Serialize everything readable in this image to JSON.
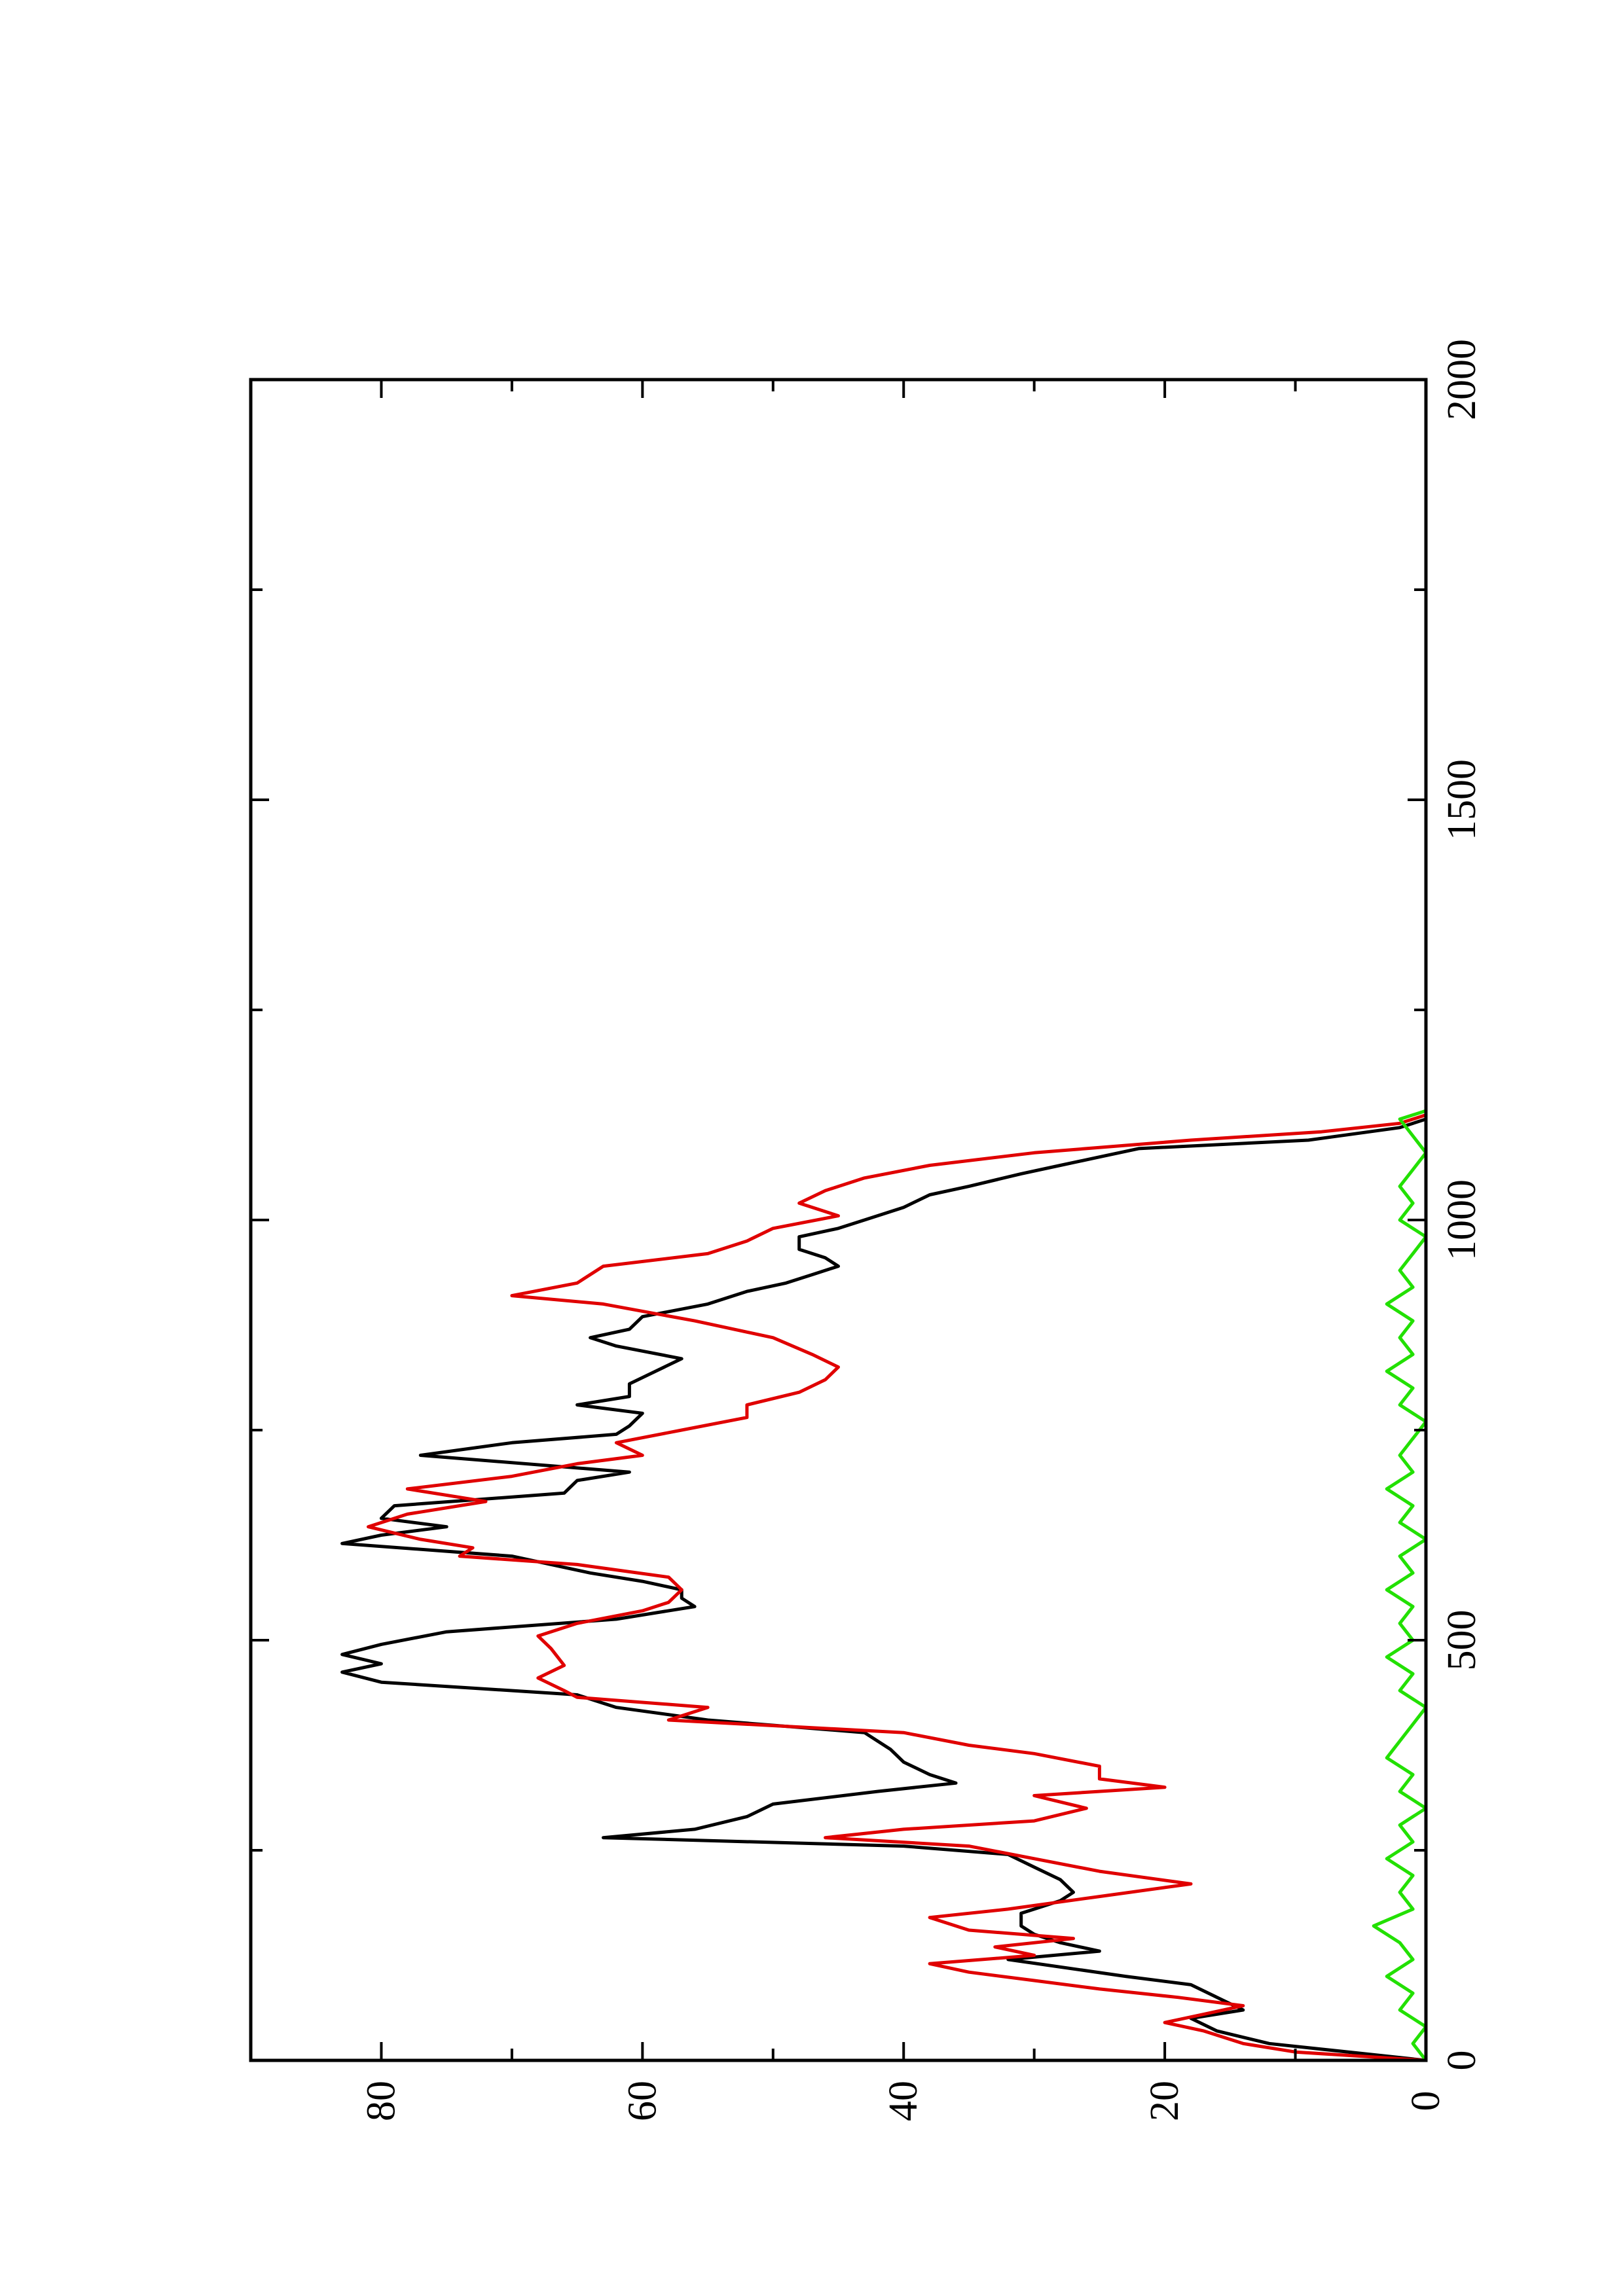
{
  "chart_data": {
    "type": "line",
    "orientation": "rotated-90-clockwise",
    "title": "",
    "xlabel": "",
    "ylabel": "",
    "xlim": [
      0,
      2000
    ],
    "ylim": [
      0,
      90
    ],
    "x_ticks": [
      "0",
      "500",
      "1000",
      "1500",
      "2000"
    ],
    "y_ticks": [
      "0",
      "20",
      "40",
      "60",
      "80"
    ],
    "grid": false,
    "legend": "none",
    "series": [
      {
        "color": "#000000",
        "points": [
          [
            0,
            0
          ],
          [
            20,
            12
          ],
          [
            35,
            16
          ],
          [
            50,
            18
          ],
          [
            60,
            14
          ],
          [
            75,
            16
          ],
          [
            90,
            18
          ],
          [
            100,
            23
          ],
          [
            120,
            32
          ],
          [
            130,
            25
          ],
          [
            140,
            28
          ],
          [
            150,
            30
          ],
          [
            160,
            31
          ],
          [
            175,
            31
          ],
          [
            190,
            28
          ],
          [
            200,
            27
          ],
          [
            215,
            28
          ],
          [
            230,
            30
          ],
          [
            245,
            32
          ],
          [
            255,
            40
          ],
          [
            265,
            63
          ],
          [
            275,
            56
          ],
          [
            290,
            52
          ],
          [
            305,
            50
          ],
          [
            320,
            42
          ],
          [
            330,
            36
          ],
          [
            340,
            38
          ],
          [
            355,
            40
          ],
          [
            370,
            41
          ],
          [
            390,
            43
          ],
          [
            405,
            55
          ],
          [
            420,
            62
          ],
          [
            435,
            65
          ],
          [
            450,
            80
          ],
          [
            462,
            83
          ],
          [
            472,
            80
          ],
          [
            483,
            83
          ],
          [
            495,
            80
          ],
          [
            510,
            75
          ],
          [
            525,
            62
          ],
          [
            540,
            56
          ],
          [
            550,
            57
          ],
          [
            560,
            57
          ],
          [
            570,
            60
          ],
          [
            580,
            64
          ],
          [
            600,
            70
          ],
          [
            615,
            83
          ],
          [
            625,
            80
          ],
          [
            635,
            75
          ],
          [
            645,
            80
          ],
          [
            660,
            79
          ],
          [
            675,
            66
          ],
          [
            690,
            65
          ],
          [
            700,
            61
          ],
          [
            720,
            77
          ],
          [
            735,
            70
          ],
          [
            745,
            62
          ],
          [
            755,
            61
          ],
          [
            770,
            60
          ],
          [
            780,
            65
          ],
          [
            790,
            61
          ],
          [
            805,
            61
          ],
          [
            820,
            59
          ],
          [
            835,
            57
          ],
          [
            850,
            62
          ],
          [
            860,
            64
          ],
          [
            870,
            61
          ],
          [
            885,
            60
          ],
          [
            900,
            55
          ],
          [
            915,
            52
          ],
          [
            925,
            49
          ],
          [
            935,
            47
          ],
          [
            945,
            45
          ],
          [
            955,
            46
          ],
          [
            965,
            48
          ],
          [
            980,
            48
          ],
          [
            990,
            45
          ],
          [
            1000,
            43
          ],
          [
            1015,
            40
          ],
          [
            1030,
            38
          ],
          [
            1040,
            35
          ],
          [
            1055,
            31
          ],
          [
            1065,
            28
          ],
          [
            1075,
            25
          ],
          [
            1085,
            22
          ],
          [
            1095,
            9
          ],
          [
            1110,
            2
          ],
          [
            1120,
            0
          ]
        ]
      },
      {
        "color": "#e00000",
        "points": [
          [
            0,
            0
          ],
          [
            10,
            10
          ],
          [
            20,
            14
          ],
          [
            35,
            17
          ],
          [
            45,
            20
          ],
          [
            55,
            17
          ],
          [
            65,
            14
          ],
          [
            75,
            19
          ],
          [
            85,
            25
          ],
          [
            95,
            30
          ],
          [
            105,
            35
          ],
          [
            115,
            38
          ],
          [
            125,
            30
          ],
          [
            135,
            33
          ],
          [
            145,
            27
          ],
          [
            155,
            35
          ],
          [
            170,
            38
          ],
          [
            180,
            32
          ],
          [
            195,
            25
          ],
          [
            210,
            18
          ],
          [
            225,
            25
          ],
          [
            240,
            30
          ],
          [
            255,
            35
          ],
          [
            265,
            46
          ],
          [
            275,
            40
          ],
          [
            285,
            30
          ],
          [
            300,
            26
          ],
          [
            315,
            30
          ],
          [
            325,
            20
          ],
          [
            335,
            25
          ],
          [
            350,
            25
          ],
          [
            365,
            30
          ],
          [
            375,
            35
          ],
          [
            390,
            40
          ],
          [
            405,
            58
          ],
          [
            420,
            55
          ],
          [
            432,
            65
          ],
          [
            440,
            66
          ],
          [
            455,
            68
          ],
          [
            470,
            66
          ],
          [
            490,
            67
          ],
          [
            505,
            68
          ],
          [
            520,
            65
          ],
          [
            535,
            60
          ],
          [
            545,
            58
          ],
          [
            560,
            57
          ],
          [
            575,
            58
          ],
          [
            590,
            65
          ],
          [
            600,
            74
          ],
          [
            610,
            73
          ],
          [
            620,
            77
          ],
          [
            635,
            81
          ],
          [
            650,
            78
          ],
          [
            665,
            72
          ],
          [
            680,
            78
          ],
          [
            695,
            70
          ],
          [
            710,
            65
          ],
          [
            720,
            60
          ],
          [
            735,
            62
          ],
          [
            750,
            57
          ],
          [
            765,
            52
          ],
          [
            780,
            52
          ],
          [
            795,
            48
          ],
          [
            810,
            46
          ],
          [
            825,
            45
          ],
          [
            840,
            47
          ],
          [
            860,
            50
          ],
          [
            880,
            56
          ],
          [
            900,
            63
          ],
          [
            910,
            70
          ],
          [
            925,
            65
          ],
          [
            945,
            63
          ],
          [
            960,
            55
          ],
          [
            975,
            52
          ],
          [
            990,
            50
          ],
          [
            1005,
            45
          ],
          [
            1020,
            48
          ],
          [
            1035,
            46
          ],
          [
            1050,
            43
          ],
          [
            1065,
            38
          ],
          [
            1080,
            30
          ],
          [
            1095,
            18
          ],
          [
            1105,
            8
          ],
          [
            1115,
            2
          ],
          [
            1125,
            0
          ]
        ]
      },
      {
        "color": "#22e000",
        "points": [
          [
            0,
            0
          ],
          [
            20,
            1
          ],
          [
            40,
            0
          ],
          [
            60,
            2
          ],
          [
            80,
            1
          ],
          [
            100,
            3
          ],
          [
            120,
            1
          ],
          [
            140,
            2
          ],
          [
            160,
            4
          ],
          [
            180,
            1
          ],
          [
            200,
            2
          ],
          [
            220,
            1
          ],
          [
            240,
            3
          ],
          [
            260,
            1
          ],
          [
            280,
            2
          ],
          [
            300,
            0
          ],
          [
            320,
            2
          ],
          [
            340,
            1
          ],
          [
            360,
            3
          ],
          [
            380,
            2
          ],
          [
            400,
            1
          ],
          [
            420,
            0
          ],
          [
            440,
            2
          ],
          [
            460,
            1
          ],
          [
            480,
            3
          ],
          [
            500,
            1
          ],
          [
            520,
            2
          ],
          [
            540,
            1
          ],
          [
            560,
            3
          ],
          [
            580,
            1
          ],
          [
            600,
            2
          ],
          [
            620,
            0
          ],
          [
            640,
            2
          ],
          [
            660,
            1
          ],
          [
            680,
            3
          ],
          [
            700,
            1
          ],
          [
            720,
            2
          ],
          [
            740,
            1
          ],
          [
            760,
            0
          ],
          [
            780,
            2
          ],
          [
            800,
            1
          ],
          [
            820,
            3
          ],
          [
            840,
            1
          ],
          [
            860,
            2
          ],
          [
            880,
            1
          ],
          [
            900,
            3
          ],
          [
            920,
            1
          ],
          [
            940,
            2
          ],
          [
            960,
            1
          ],
          [
            980,
            0
          ],
          [
            1000,
            2
          ],
          [
            1020,
            1
          ],
          [
            1040,
            2
          ],
          [
            1060,
            1
          ],
          [
            1080,
            0
          ],
          [
            1100,
            1
          ],
          [
            1120,
            2
          ],
          [
            1130,
            0
          ]
        ]
      }
    ]
  }
}
